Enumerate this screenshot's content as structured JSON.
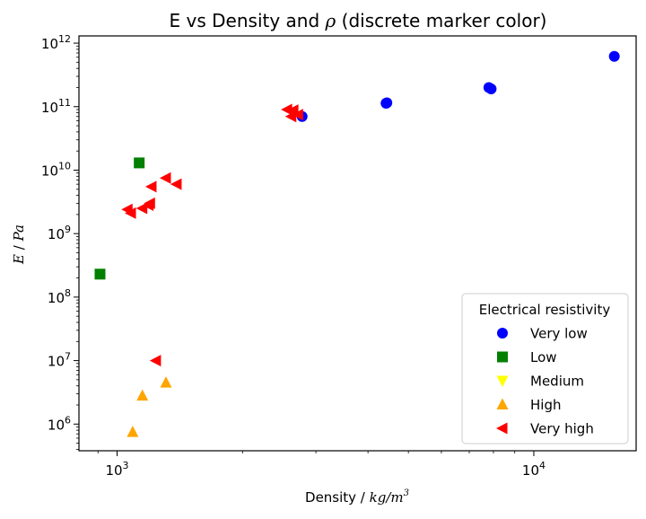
{
  "chart_data": {
    "type": "scatter",
    "title_parts": [
      "E vs Density and ",
      "ρ",
      " (discrete marker color)"
    ],
    "xlabel_parts": [
      "Density / ",
      "kg/m",
      "3"
    ],
    "ylabel_parts": [
      "E",
      " / ",
      "Pa"
    ],
    "x_scale": "log",
    "y_scale": "log",
    "xlim": [
      810,
      17600
    ],
    "ylim": [
      380000,
      1300000000000
    ],
    "x_ticks": [
      {
        "value": 1000,
        "base": "10",
        "exp": "3"
      },
      {
        "value": 10000,
        "base": "10",
        "exp": "4"
      }
    ],
    "y_ticks": [
      {
        "value": 1000000,
        "base": "10",
        "exp": "6"
      },
      {
        "value": 10000000,
        "base": "10",
        "exp": "7"
      },
      {
        "value": 100000000,
        "base": "10",
        "exp": "8"
      },
      {
        "value": 1000000000,
        "base": "10",
        "exp": "9"
      },
      {
        "value": 10000000000,
        "base": "10",
        "exp": "10"
      },
      {
        "value": 100000000000,
        "base": "10",
        "exp": "11"
      },
      {
        "value": 1000000000000,
        "base": "10",
        "exp": "12"
      }
    ],
    "grid": false,
    "legend": {
      "title": "Electrical resistivity",
      "placement": "lower-right"
    },
    "series": [
      {
        "name": "Very low",
        "marker": "circle",
        "color": "#0000ff",
        "points": [
          [
            2780,
            70000000000
          ],
          [
            4420,
            113000000000
          ],
          [
            4440,
            115000000000
          ],
          [
            7800,
            200000000000
          ],
          [
            7900,
            190000000000
          ],
          [
            15600,
            620000000000
          ]
        ]
      },
      {
        "name": "Low",
        "marker": "square",
        "color": "#008000",
        "points": [
          [
            910,
            230000000
          ],
          [
            1130,
            13000000000
          ]
        ]
      },
      {
        "name": "Medium",
        "marker": "triangle-down",
        "color": "#ffff00",
        "points": []
      },
      {
        "name": "High",
        "marker": "triangle-up",
        "color": "#ffa500",
        "points": [
          [
            1090,
            750000
          ],
          [
            1150,
            2800000
          ],
          [
            1310,
            4500000
          ]
        ]
      },
      {
        "name": "Very high",
        "marker": "triangle-left",
        "color": "#ff0000",
        "points": [
          [
            1060,
            2400000000
          ],
          [
            1080,
            2100000000
          ],
          [
            1150,
            2500000000
          ],
          [
            1190,
            2800000000
          ],
          [
            1200,
            3000000000
          ],
          [
            1210,
            5500000000
          ],
          [
            1310,
            7500000000
          ],
          [
            1390,
            6000000000
          ],
          [
            1240,
            10000000
          ],
          [
            2560,
            90000000000
          ],
          [
            2620,
            70000000000
          ],
          [
            2650,
            88000000000
          ],
          [
            2720,
            75000000000
          ]
        ]
      }
    ]
  }
}
